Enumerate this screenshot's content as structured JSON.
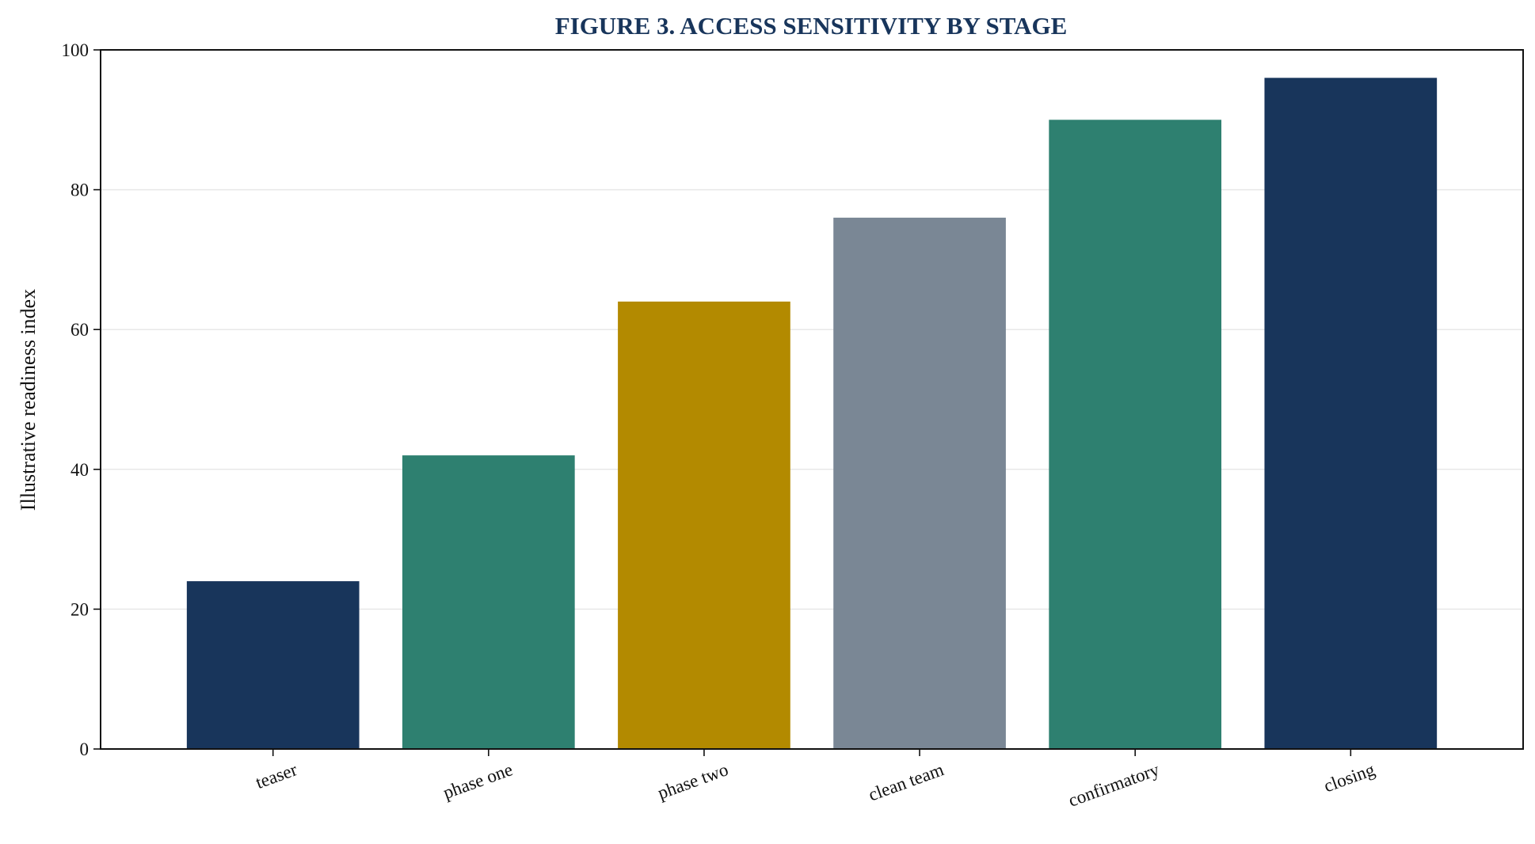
{
  "chart_data": {
    "type": "bar",
    "title": "FIGURE 3. ACCESS SENSITIVITY BY STAGE",
    "xlabel": "",
    "ylabel": "Illustrative readiness index",
    "categories": [
      "teaser",
      "phase one",
      "phase two",
      "clean team",
      "confirmatory",
      "closing"
    ],
    "values": [
      24,
      42,
      64,
      76,
      90,
      96
    ],
    "bar_colors": [
      "#18355b",
      "#2e8070",
      "#b38a00",
      "#7a8795",
      "#2e8070",
      "#18355b"
    ],
    "ylim": [
      0,
      100
    ],
    "yticks": [
      0,
      20,
      40,
      60,
      80,
      100
    ],
    "grid": true,
    "tick_label_rotation": "angled",
    "colors": {
      "title": "#18355b",
      "grid": "#e8e8e8",
      "axis": "#111111"
    }
  }
}
